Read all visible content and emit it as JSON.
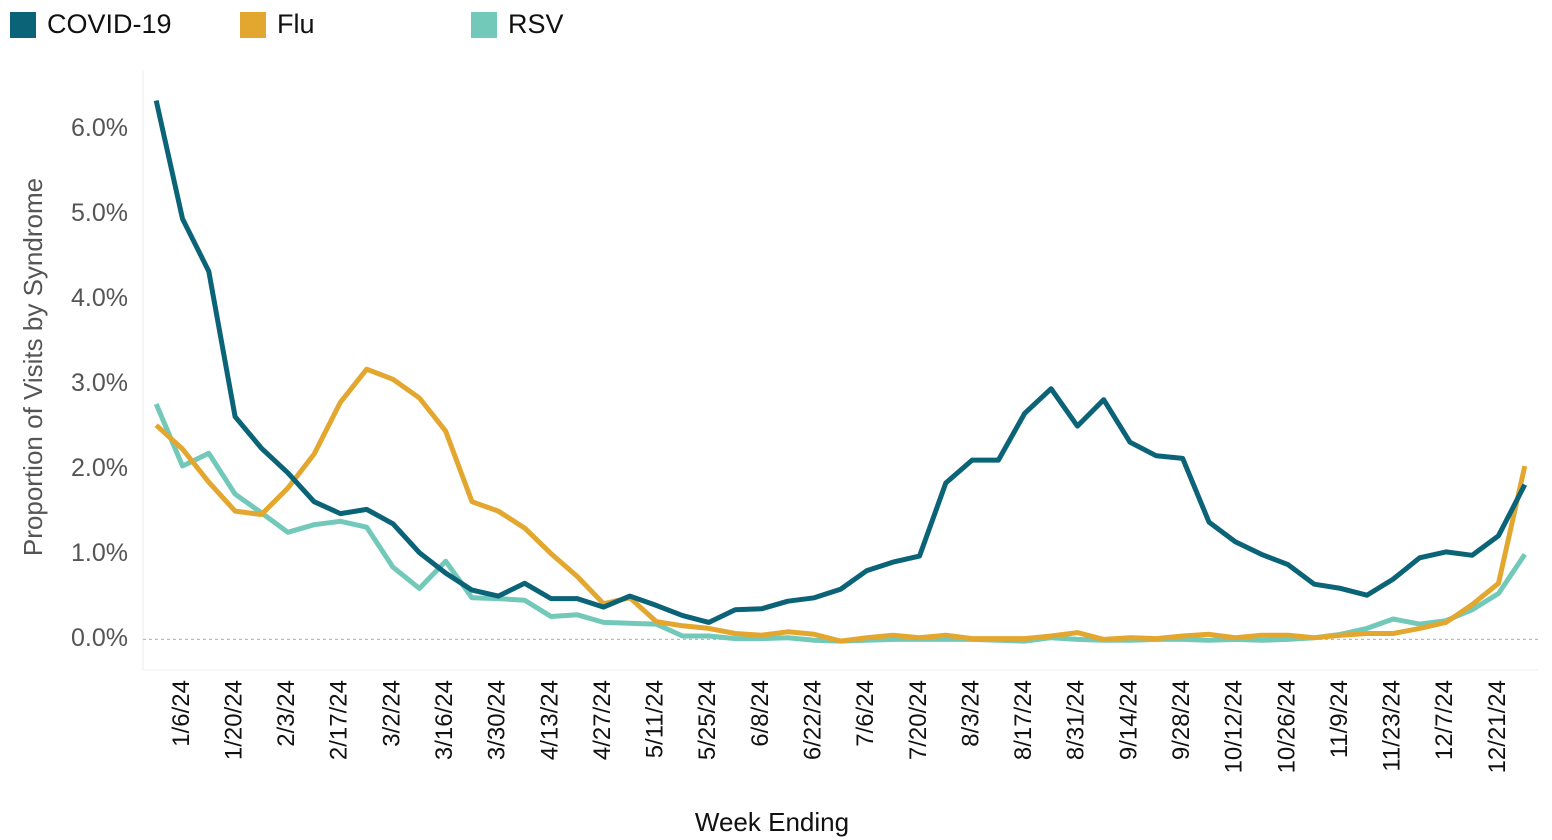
{
  "chart_data": {
    "type": "line",
    "categories": [
      null,
      "1/6/24",
      null,
      "1/20/24",
      null,
      "2/3/24",
      null,
      "2/17/24",
      null,
      "3/2/24",
      null,
      "3/16/24",
      null,
      "3/30/24",
      null,
      "4/13/24",
      null,
      "4/27/24",
      null,
      "5/11/24",
      null,
      "5/25/24",
      null,
      "6/8/24",
      null,
      "6/22/24",
      null,
      "7/6/24",
      null,
      "7/20/24",
      null,
      "8/3/24",
      null,
      "8/17/24",
      null,
      "8/31/24",
      null,
      "9/14/24",
      null,
      "9/28/24",
      null,
      "10/12/24",
      null,
      "10/26/24",
      null,
      "11/9/24",
      null,
      "11/23/24",
      null,
      "12/7/24",
      null,
      "12/21/24",
      null
    ],
    "series": [
      {
        "name": "COVID-19",
        "color": "#0b6378",
        "values": [
          6.34,
          4.95,
          4.33,
          2.62,
          2.25,
          1.96,
          1.62,
          1.48,
          1.53,
          1.36,
          1.02,
          0.78,
          0.58,
          0.51,
          0.66,
          0.48,
          0.48,
          0.38,
          0.51,
          0.4,
          0.28,
          0.2,
          0.35,
          0.36,
          0.45,
          0.49,
          0.59,
          0.81,
          0.91,
          0.98,
          1.84,
          2.11,
          2.11,
          2.66,
          2.95,
          2.51,
          2.82,
          2.32,
          2.16,
          2.13,
          1.38,
          1.15,
          1.0,
          0.88,
          0.65,
          0.6,
          0.52,
          0.71,
          0.96,
          1.03,
          0.99,
          1.22,
          1.82
        ]
      },
      {
        "name": "Flu",
        "color": "#e3a72f",
        "values": [
          2.52,
          2.24,
          1.85,
          1.51,
          1.47,
          1.78,
          2.18,
          2.79,
          3.18,
          3.06,
          2.84,
          2.45,
          1.62,
          1.51,
          1.31,
          1.01,
          0.74,
          0.42,
          0.49,
          0.21,
          0.16,
          0.13,
          0.07,
          0.05,
          0.09,
          0.06,
          -0.02,
          0.02,
          0.05,
          0.02,
          0.05,
          0.01,
          0.01,
          0.01,
          0.04,
          0.08,
          0.0,
          0.02,
          0.01,
          0.04,
          0.06,
          0.02,
          0.05,
          0.05,
          0.02,
          0.05,
          0.07,
          0.07,
          0.13,
          0.2,
          0.41,
          0.66,
          2.04
        ]
      },
      {
        "name": "RSV",
        "color": "#72c9b9",
        "values": [
          2.77,
          2.04,
          2.19,
          1.71,
          1.49,
          1.26,
          1.35,
          1.39,
          1.32,
          0.85,
          0.6,
          0.92,
          0.49,
          0.48,
          0.46,
          0.27,
          0.29,
          0.2,
          0.19,
          0.18,
          0.04,
          0.04,
          0.01,
          0.01,
          0.02,
          -0.01,
          -0.02,
          -0.01,
          0.0,
          0.0,
          0.0,
          0.0,
          -0.01,
          -0.02,
          0.02,
          0.0,
          -0.01,
          -0.01,
          0.0,
          0.0,
          -0.01,
          0.0,
          -0.01,
          0.0,
          0.02,
          0.06,
          0.13,
          0.24,
          0.18,
          0.22,
          0.35,
          0.54,
          1.0
        ]
      }
    ],
    "x_label": "Week Ending",
    "y_label": "Proportion of Visits by Syndrome",
    "ylim": [
      -0.36,
      6.7
    ],
    "yticks": [
      {
        "value": 0,
        "label": "0.0%"
      },
      {
        "value": 1,
        "label": "1.0%"
      },
      {
        "value": 2,
        "label": "2.0%"
      },
      {
        "value": 3,
        "label": "3.0%"
      },
      {
        "value": 4,
        "label": "4.0%"
      },
      {
        "value": 5,
        "label": "5.0%"
      },
      {
        "value": 6,
        "label": "6.0%"
      }
    ],
    "zero_line": true
  }
}
